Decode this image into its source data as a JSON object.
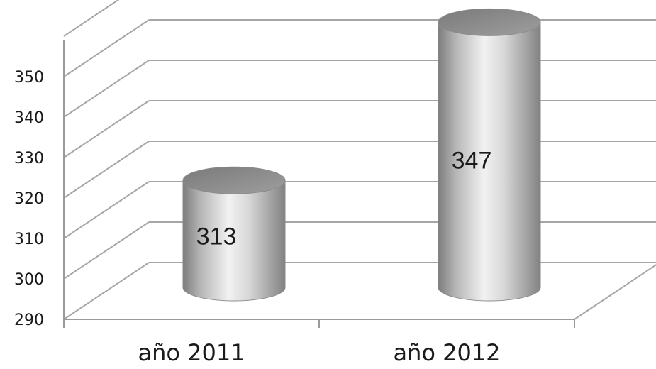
{
  "chart_data": {
    "type": "bar",
    "style": "3d-cylinder",
    "categories": [
      "año 2011",
      "año 2012"
    ],
    "values": [
      313,
      347
    ],
    "data_labels": [
      "313",
      "347"
    ],
    "yticks": [
      "290",
      "300",
      "310",
      "320",
      "330",
      "340",
      "350"
    ],
    "ylim": [
      290,
      360
    ],
    "grid": true,
    "title": "",
    "xlabel": "",
    "ylabel": ""
  }
}
